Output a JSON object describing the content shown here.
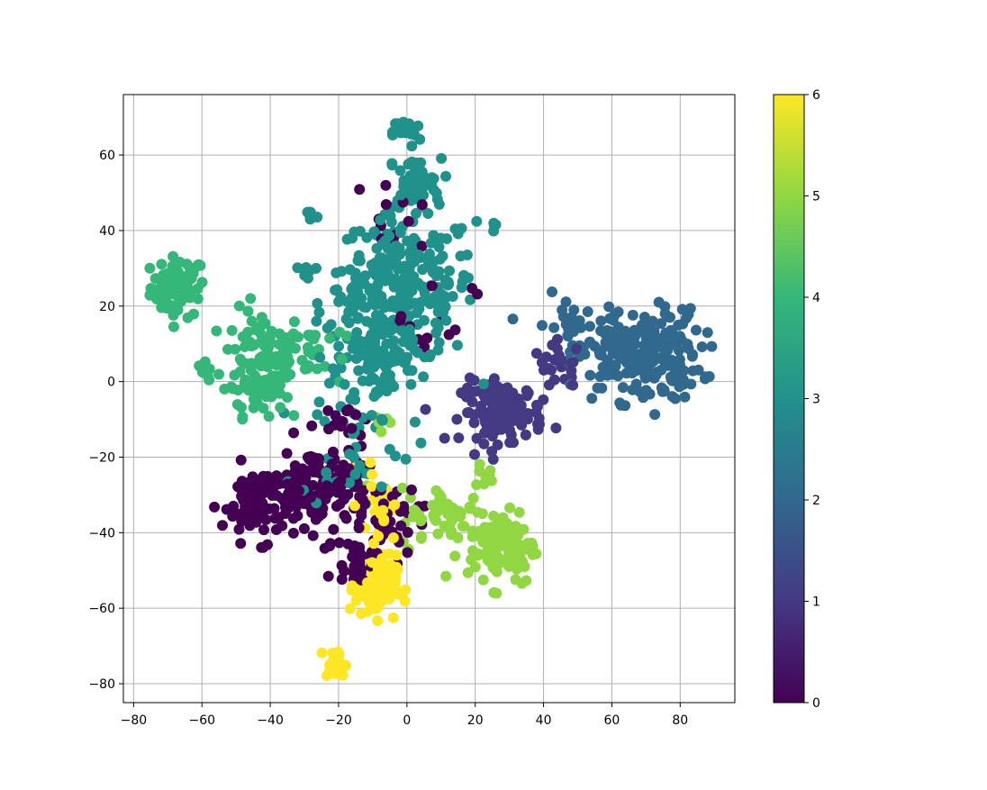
{
  "chart_data": {
    "type": "scatter",
    "title": "",
    "xlabel": "",
    "ylabel": "",
    "xlim": [
      -83,
      96
    ],
    "ylim": [
      -85,
      76
    ],
    "x_ticks": [
      -80,
      -60,
      -40,
      -20,
      0,
      20,
      40,
      60,
      80
    ],
    "y_ticks": [
      -80,
      -60,
      -40,
      -20,
      0,
      20,
      40,
      60
    ],
    "grid": true,
    "colormap": "viridis",
    "colorbar": {
      "min": 0,
      "max": 6,
      "ticks": [
        0,
        1,
        2,
        3,
        4,
        5,
        6
      ]
    },
    "colors": [
      "#440154",
      "#443983",
      "#31688e",
      "#21918c",
      "#35b779",
      "#90d743",
      "#fde725"
    ],
    "clusters": [
      {
        "label": 4,
        "center": [
          -67,
          25
        ],
        "spread": [
          4,
          4
        ],
        "n": 70
      },
      {
        "label": 4,
        "center": [
          -42,
          7
        ],
        "spread": [
          6,
          6
        ],
        "n": 90
      },
      {
        "label": 4,
        "center": [
          -44,
          -3
        ],
        "spread": [
          4,
          3
        ],
        "n": 40
      },
      {
        "label": 4,
        "center": [
          -59,
          3
        ],
        "spread": [
          1,
          1
        ],
        "n": 6
      },
      {
        "label": 4,
        "center": [
          -28,
          8
        ],
        "spread": [
          5,
          5
        ],
        "n": 25
      },
      {
        "label": 3,
        "center": [
          0,
          25
        ],
        "spread": [
          10,
          10
        ],
        "n": 220
      },
      {
        "label": 3,
        "center": [
          -10,
          20
        ],
        "spread": [
          7,
          8
        ],
        "n": 100
      },
      {
        "label": 3,
        "center": [
          2,
          53
        ],
        "spread": [
          4,
          3
        ],
        "n": 40
      },
      {
        "label": 3,
        "center": [
          0,
          66
        ],
        "spread": [
          2,
          2
        ],
        "n": 20
      },
      {
        "label": 3,
        "center": [
          -28,
          44
        ],
        "spread": [
          1,
          1
        ],
        "n": 8
      },
      {
        "label": 3,
        "center": [
          -30,
          30
        ],
        "spread": [
          2,
          1
        ],
        "n": 8
      },
      {
        "label": 3,
        "center": [
          -8,
          5
        ],
        "spread": [
          6,
          6
        ],
        "n": 70
      },
      {
        "label": 3,
        "center": [
          -15,
          -17
        ],
        "spread": [
          8,
          8
        ],
        "n": 40
      },
      {
        "label": 3,
        "center": [
          25,
          41
        ],
        "spread": [
          1,
          1
        ],
        "n": 4
      },
      {
        "label": 2,
        "center": [
          68,
          7
        ],
        "spread": [
          9,
          6
        ],
        "n": 230
      },
      {
        "label": 2,
        "center": [
          46,
          15
        ],
        "spread": [
          5,
          4
        ],
        "n": 20
      },
      {
        "label": 1,
        "center": [
          28,
          -8
        ],
        "spread": [
          6,
          4
        ],
        "n": 120
      },
      {
        "label": 1,
        "center": [
          45,
          4
        ],
        "spread": [
          4,
          3
        ],
        "n": 25
      },
      {
        "label": 0,
        "center": [
          -42,
          -32
        ],
        "spread": [
          6,
          5
        ],
        "n": 110
      },
      {
        "label": 0,
        "center": [
          -25,
          -28
        ],
        "spread": [
          7,
          6
        ],
        "n": 110
      },
      {
        "label": 0,
        "center": [
          -8,
          -38
        ],
        "spread": [
          6,
          6
        ],
        "n": 50
      },
      {
        "label": 0,
        "center": [
          -15,
          -48
        ],
        "spread": [
          3,
          3
        ],
        "n": 20
      },
      {
        "label": 0,
        "center": [
          -5,
          45
        ],
        "spread": [
          5,
          5
        ],
        "n": 12
      },
      {
        "label": 0,
        "center": [
          8,
          16
        ],
        "spread": [
          6,
          6
        ],
        "n": 12
      },
      {
        "label": 0,
        "center": [
          -18,
          -8
        ],
        "spread": [
          4,
          4
        ],
        "n": 10
      },
      {
        "label": 6,
        "center": [
          -9,
          -54
        ],
        "spread": [
          3,
          4
        ],
        "n": 110
      },
      {
        "label": 6,
        "center": [
          -21,
          -75
        ],
        "spread": [
          1.5,
          2
        ],
        "n": 30
      },
      {
        "label": 6,
        "center": [
          -8,
          -32
        ],
        "spread": [
          3,
          5
        ],
        "n": 35
      },
      {
        "label": 5,
        "center": [
          28,
          -44
        ],
        "spread": [
          5,
          5
        ],
        "n": 110
      },
      {
        "label": 5,
        "center": [
          12,
          -36
        ],
        "spread": [
          7,
          4
        ],
        "n": 60
      },
      {
        "label": 5,
        "center": [
          23,
          -24
        ],
        "spread": [
          2,
          2
        ],
        "n": 8
      },
      {
        "label": 5,
        "center": [
          -8,
          -10
        ],
        "spread": [
          2,
          2
        ],
        "n": 5
      }
    ]
  }
}
